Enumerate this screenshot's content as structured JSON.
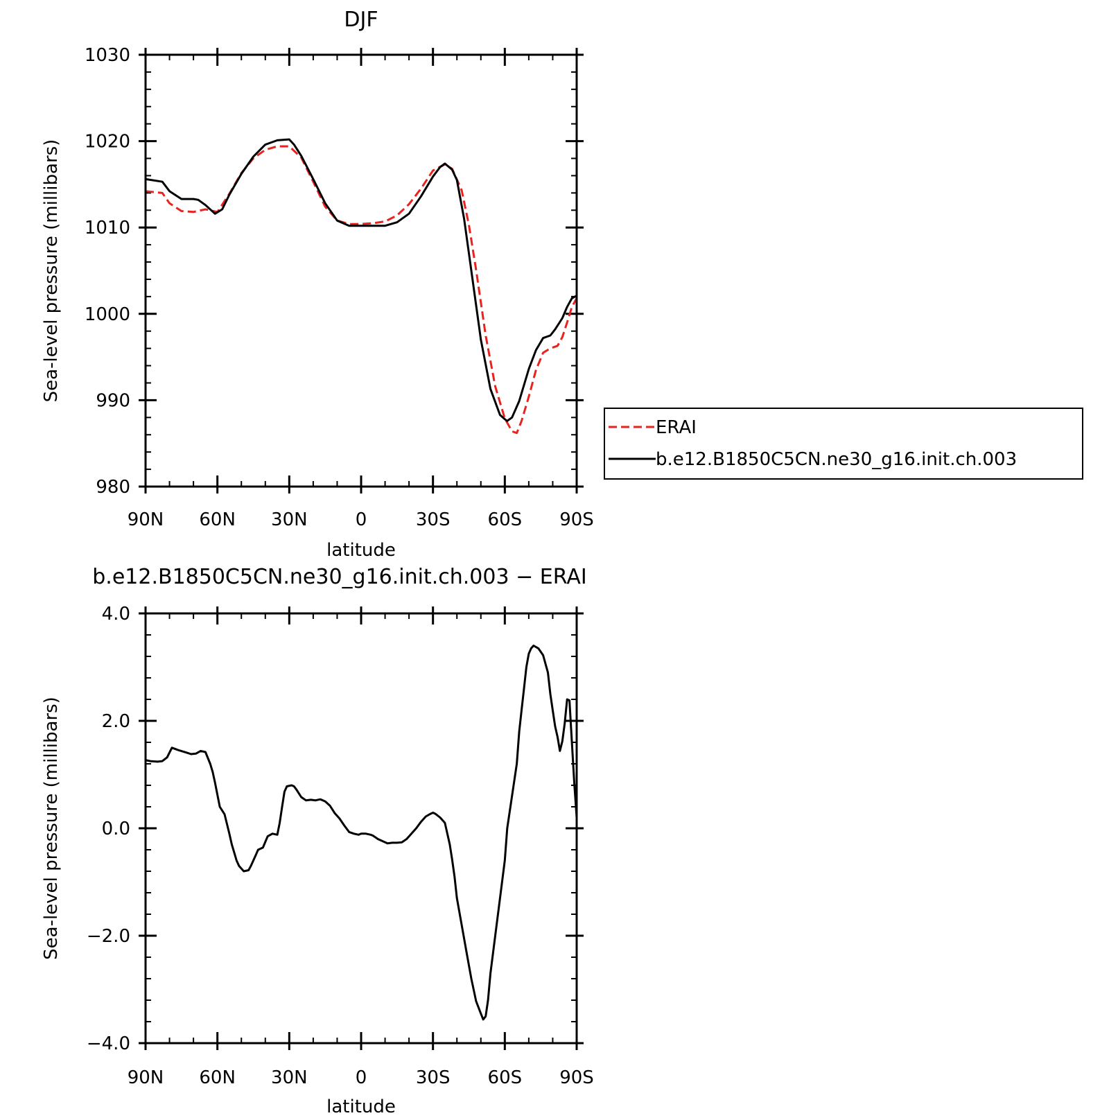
{
  "chart_data": [
    {
      "type": "line",
      "title": "DJF",
      "xlabel": "latitude",
      "ylabel": "Sea-level pressure (millibars)",
      "x_tick_labels": [
        "90N",
        "60N",
        "30N",
        "0",
        "30S",
        "60S",
        "90S"
      ],
      "x_tick_values": [
        90,
        60,
        30,
        0,
        -30,
        -60,
        -90
      ],
      "xlim": [
        90,
        -90
      ],
      "ylim": [
        980,
        1030
      ],
      "y_ticks": [
        980,
        990,
        1000,
        1010,
        1020,
        1030
      ],
      "y_tick_labels": [
        "980",
        "990",
        "1000",
        "1010",
        "1020",
        "1030"
      ],
      "legend": {
        "placement": "right",
        "entries": [
          "ERAI",
          "b.e12.B1850C5CN.ne30_g16.init.ch.003"
        ]
      },
      "series": [
        {
          "name": "ERAI",
          "color": "#e8231f",
          "dash": true,
          "x": [
            90,
            83,
            80,
            75,
            70,
            65,
            60,
            55,
            50,
            45,
            40,
            35,
            30,
            25,
            20,
            15,
            10,
            5,
            0,
            -5,
            -10,
            -15,
            -20,
            -25,
            -30,
            -35,
            -38,
            -42,
            -45,
            -48,
            -52,
            -56,
            -60,
            -63,
            -65,
            -67,
            -70,
            -73,
            -76,
            -79,
            -82,
            -84,
            -86,
            -88,
            -90
          ],
          "y": [
            1014.2,
            1014.0,
            1012.8,
            1011.9,
            1011.8,
            1012.1,
            1011.8,
            1013.9,
            1016.3,
            1018.0,
            1019.0,
            1019.4,
            1019.4,
            1018.1,
            1015.3,
            1012.4,
            1010.8,
            1010.4,
            1010.4,
            1010.5,
            1010.7,
            1011.4,
            1012.7,
            1014.5,
            1016.6,
            1017.3,
            1016.8,
            1014.3,
            1010.3,
            1005.1,
            997.5,
            991.6,
            987.9,
            986.4,
            986.2,
            987.6,
            990.4,
            993.5,
            995.5,
            996.0,
            996.3,
            997.3,
            999.0,
            1000.8,
            1001.8
          ]
        },
        {
          "name": "b.e12.B1850C5CN.ne30_g16.init.ch.003",
          "color": "#000000",
          "dash": false,
          "x": [
            90,
            83,
            80,
            75,
            70,
            68,
            65,
            61,
            58,
            55,
            50,
            45,
            40,
            35,
            30,
            28,
            25,
            20,
            15,
            10,
            5,
            0,
            -5,
            -10,
            -15,
            -20,
            -25,
            -30,
            -33,
            -35,
            -38,
            -40,
            -43,
            -46,
            -50,
            -54,
            -58,
            -60,
            -61,
            -63,
            -66,
            -70,
            -73,
            -76,
            -79,
            -81,
            -84,
            -86,
            -88,
            -90
          ],
          "y": [
            1015.6,
            1015.3,
            1014.2,
            1013.3,
            1013.3,
            1013.2,
            1012.6,
            1011.6,
            1012.1,
            1013.8,
            1016.2,
            1018.2,
            1019.6,
            1020.1,
            1020.2,
            1019.6,
            1018.3,
            1015.6,
            1012.8,
            1010.8,
            1010.2,
            1010.2,
            1010.2,
            1010.2,
            1010.6,
            1011.6,
            1013.6,
            1015.9,
            1017.0,
            1017.4,
            1016.7,
            1015.5,
            1011.0,
            1005.0,
            997.0,
            991.3,
            988.3,
            987.8,
            987.6,
            988.0,
            989.9,
            993.6,
            995.8,
            997.2,
            997.5,
            998.2,
            999.5,
            1000.8,
            1001.8,
            1002.1
          ]
        }
      ]
    },
    {
      "type": "line",
      "title": "b.e12.B1850C5CN.ne30_g16.init.ch.003 − ERAI",
      "xlabel": "latitude",
      "ylabel": "Sea-level pressure (millibars)",
      "x_tick_labels": [
        "90N",
        "60N",
        "30N",
        "0",
        "30S",
        "60S",
        "90S"
      ],
      "x_tick_values": [
        90,
        60,
        30,
        0,
        -30,
        -60,
        -90
      ],
      "xlim": [
        90,
        -90
      ],
      "ylim": [
        -4,
        4
      ],
      "y_ticks": [
        -4,
        -2,
        0,
        2,
        4
      ],
      "y_tick_labels": [
        "−4.0",
        "−2.0",
        "0.0",
        "2.0",
        "4.0"
      ],
      "series": [
        {
          "color": "#000000",
          "dash": false,
          "x": [
            90,
            88,
            85,
            83,
            81,
            79,
            76,
            73,
            71,
            69,
            67,
            65,
            63,
            62,
            61,
            59,
            57,
            55,
            54,
            53,
            52,
            51,
            49,
            47,
            46,
            45,
            44,
            43,
            41,
            39,
            37,
            35,
            34,
            33,
            32,
            31,
            29,
            28,
            27,
            25,
            23,
            21,
            19,
            17,
            15,
            13,
            11,
            9,
            7,
            5,
            3,
            1,
            0,
            -2,
            -4,
            -5,
            -7,
            -9,
            -11,
            -13,
            -15,
            -17,
            -19,
            -21,
            -23,
            -25,
            -27,
            -29,
            -30,
            -31,
            -33,
            -35,
            -36,
            -37,
            -38,
            -39,
            -40,
            -42,
            -44,
            -46,
            -48,
            -50,
            -51,
            -52,
            -53,
            -54,
            -56,
            -58,
            -60,
            -61,
            -63,
            -65,
            -66,
            -67,
            -68,
            -69,
            -70,
            -71,
            -72,
            -74,
            -76,
            -78,
            -79,
            -80,
            -81,
            -82,
            -83,
            -84,
            -85,
            -86,
            -87,
            -88,
            -89,
            -90
          ],
          "y": [
            1.27,
            1.25,
            1.24,
            1.25,
            1.32,
            1.5,
            1.45,
            1.41,
            1.38,
            1.39,
            1.44,
            1.42,
            1.2,
            1.05,
            0.85,
            0.4,
            0.26,
            -0.1,
            -0.3,
            -0.45,
            -0.6,
            -0.7,
            -0.8,
            -0.78,
            -0.7,
            -0.6,
            -0.5,
            -0.4,
            -0.36,
            -0.15,
            -0.1,
            -0.12,
            0.1,
            0.4,
            0.68,
            0.78,
            0.8,
            0.78,
            0.72,
            0.58,
            0.52,
            0.53,
            0.52,
            0.54,
            0.5,
            0.42,
            0.28,
            0.18,
            0.05,
            -0.07,
            -0.1,
            -0.12,
            -0.1,
            -0.1,
            -0.12,
            -0.14,
            -0.2,
            -0.24,
            -0.28,
            -0.27,
            -0.27,
            -0.26,
            -0.2,
            -0.1,
            0.0,
            0.12,
            0.22,
            0.27,
            0.29,
            0.27,
            0.2,
            0.1,
            -0.1,
            -0.3,
            -0.58,
            -0.9,
            -1.3,
            -1.8,
            -2.3,
            -2.8,
            -3.22,
            -3.45,
            -3.56,
            -3.5,
            -3.2,
            -2.7,
            -2.0,
            -1.3,
            -0.6,
            0.0,
            0.6,
            1.2,
            1.8,
            2.2,
            2.6,
            3.0,
            3.25,
            3.35,
            3.4,
            3.35,
            3.22,
            2.9,
            2.5,
            2.2,
            1.9,
            1.7,
            1.44,
            1.62,
            1.95,
            2.4,
            2.38,
            1.6,
            0.85,
            0.2
          ]
        }
      ]
    }
  ]
}
